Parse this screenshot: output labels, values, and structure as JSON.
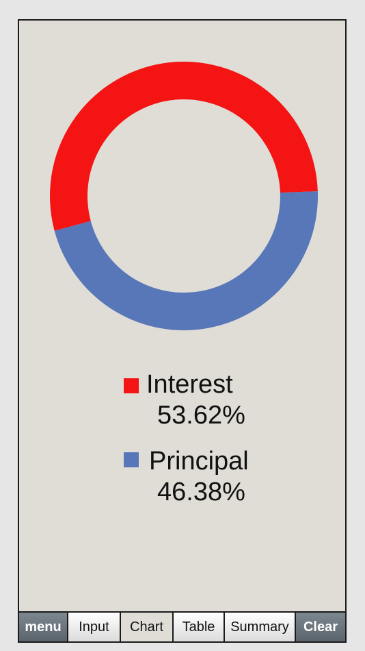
{
  "chart_data": {
    "type": "pie",
    "slices": [
      {
        "label": "Interest",
        "value": 53.62,
        "display": "53.62%",
        "color": "#f41414"
      },
      {
        "label": "Principal",
        "value": 46.38,
        "display": "46.38%",
        "color": "#5877b8"
      }
    ],
    "style": "donut",
    "start_angle_deg": 2
  },
  "legend": [
    {
      "name": "Interest",
      "percent": "53.62%",
      "color": "#f41414"
    },
    {
      "name": "Principal",
      "percent": "46.38%",
      "color": "#5877b8"
    }
  ],
  "tabs": [
    {
      "label": "menu",
      "style": "dark"
    },
    {
      "label": "Input",
      "style": "light"
    },
    {
      "label": "Chart",
      "style": "active"
    },
    {
      "label": "Table",
      "style": "light"
    },
    {
      "label": "Summary",
      "style": "light"
    },
    {
      "label": "Clear",
      "style": "dark"
    }
  ]
}
